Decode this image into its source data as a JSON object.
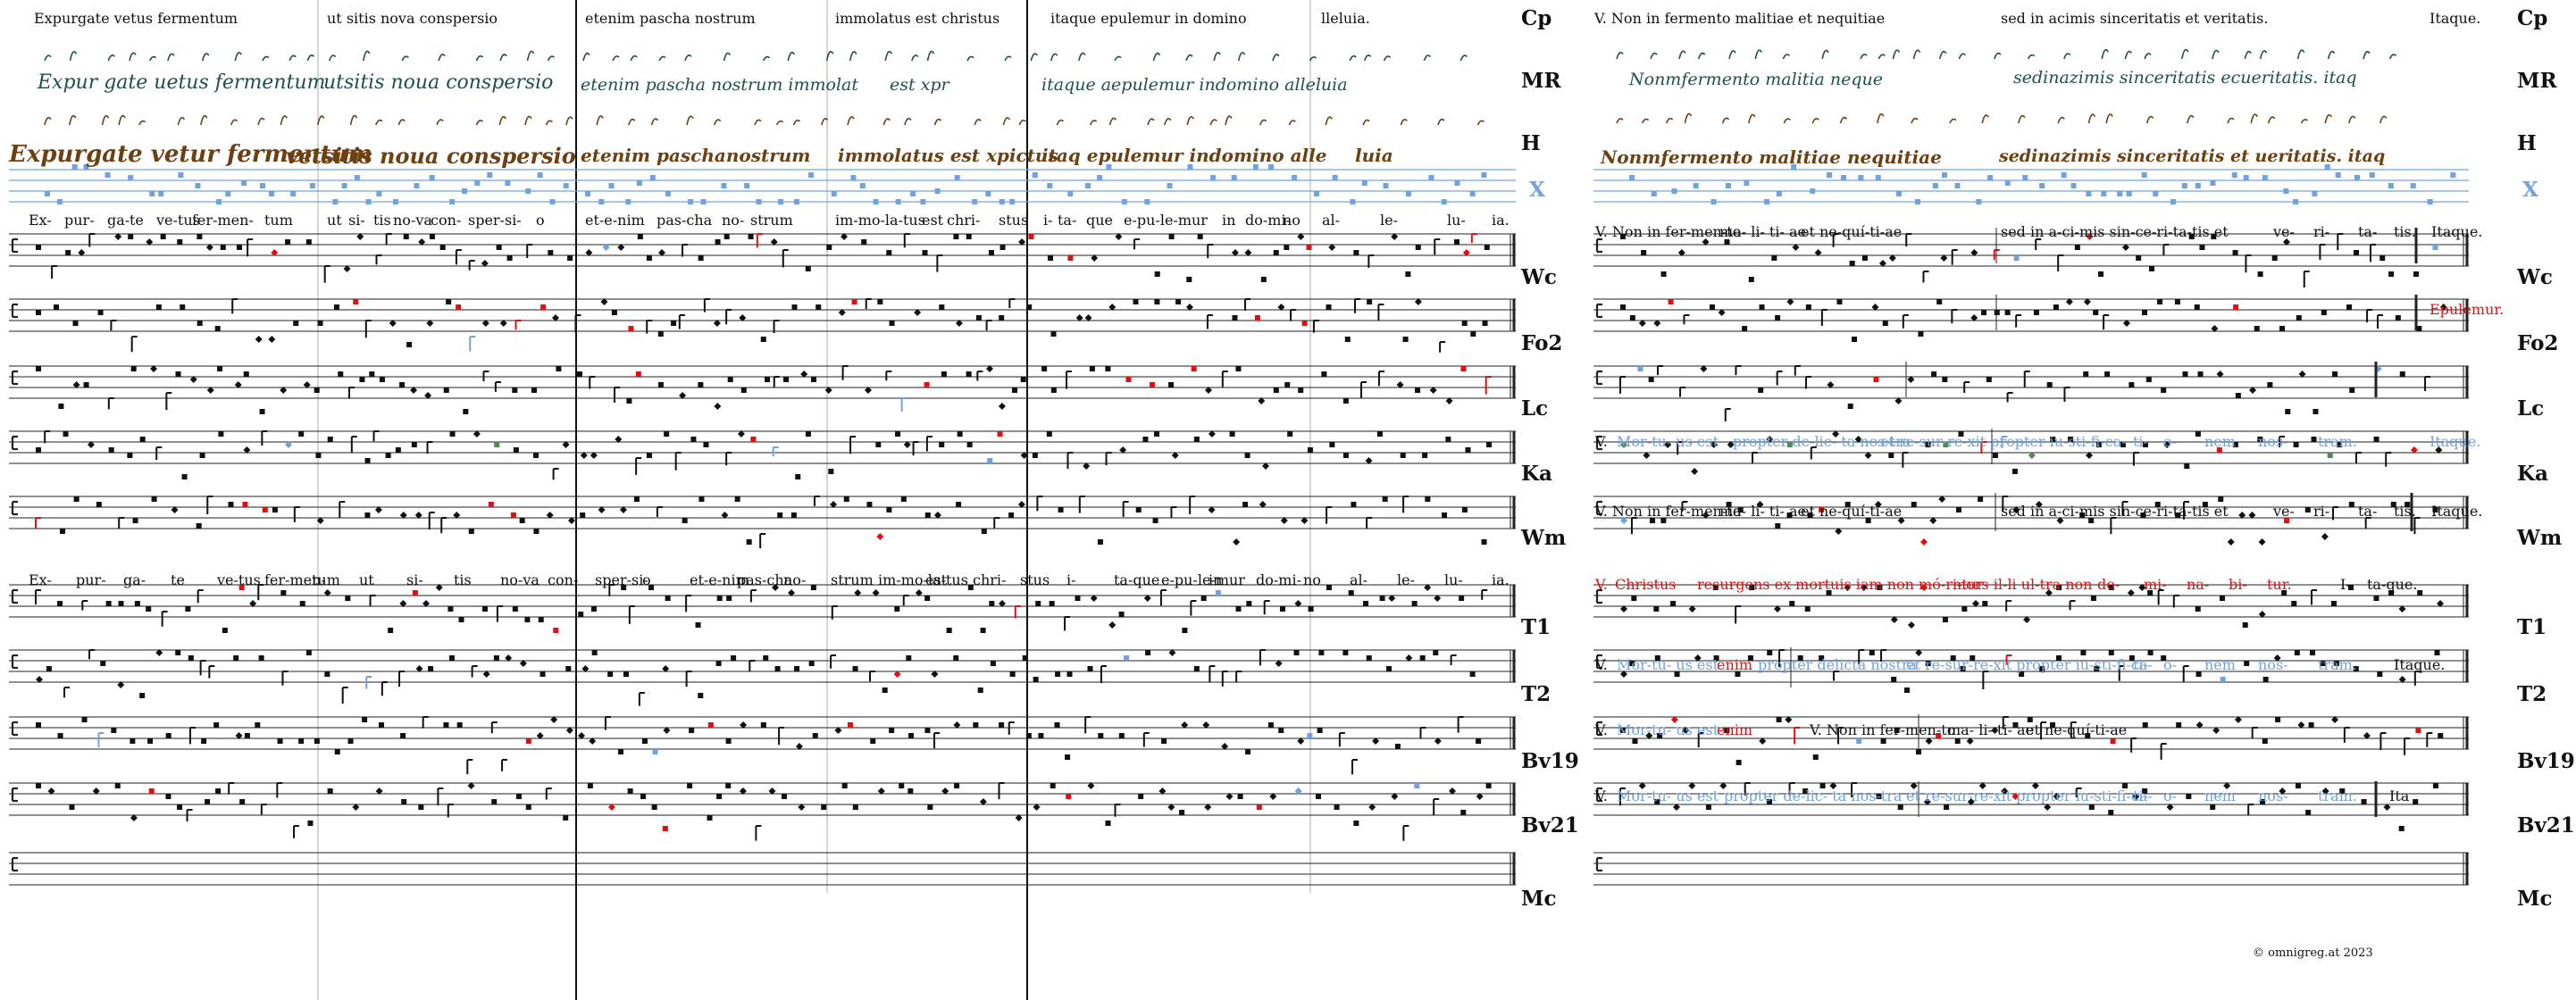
{
  "colors": {
    "ink": "#111111",
    "blue": "#6fa2e0",
    "red": "#e01010",
    "green": "#4f8a55",
    "mr": "#1f4f4c",
    "h": "#6e3f11"
  },
  "left": {
    "cp_cells": [
      "Expurgate vetus fermentum",
      "ut sitis nova conspersio",
      "etenim pascha nostrum",
      "immolatus est christus",
      "itaque epulemur in domino",
      "lleluia."
    ],
    "mr_cells": [
      "Expur gate uetus fermentum",
      "utsitis noua conspersio",
      "etenim pascha nostrum immolat",
      "est xpr",
      "itaque aepulemur indomino alleluia"
    ],
    "h_cells": [
      "Expurgate vetur fermentum",
      "vetsitis noua conspersio",
      "etenim paschanostrum",
      "immolatus est xpictus",
      "itaq epulemur indomino alle",
      "luia"
    ],
    "lyrics1": [
      "Ex-",
      "pur-",
      "ga-",
      "te",
      "ve-tus",
      "fer-men-",
      "tum",
      "ut",
      "si-",
      "tis",
      "no-va",
      "con-",
      "sper-si-",
      "o",
      "et-e-nim",
      "pas-cha",
      "no-",
      "strum",
      "im-mo-la-tus",
      "est",
      "chri-",
      "stus",
      "i-",
      "ta-",
      "que",
      "e-pu-le-mur",
      "in",
      "do-mi-",
      "no",
      "al-",
      "le-",
      "lu-",
      "ia."
    ],
    "lyrics2": [
      "Ex-",
      "pur-",
      "ga-",
      "te",
      "ve-tus",
      "fer-men-",
      "tum",
      "ut",
      "si-",
      "tis",
      "no-va",
      "con-",
      "sper-si-",
      "o",
      "et-e-nim",
      "pas-cha",
      "no-",
      "strum",
      "im-mo-la-tus",
      "est",
      "chri-",
      "stus",
      "i-",
      "ta-que",
      "e-pu-le-mur",
      "in",
      "do-mi-",
      "no",
      "al-",
      "le-",
      "lu-",
      "ia."
    ]
  },
  "right": {
    "cp": [
      "V. Non in fermento malitiae et nequitiae",
      "sed in acimis sinceritatis et veritatis.",
      "Itaque."
    ],
    "mr": [
      "Nonmfermento malitia neque",
      "sedinazimis sinceritatis ecueritatis. itaq"
    ],
    "h": [
      "Nonmfermento malitiae nequitiae",
      "sedinazimis sinceritatis et ueritatis. itaq"
    ],
    "t_wc": [
      "V. Non in fer-men-to",
      "ma- li- ti- ae",
      "et ne-quí-ti-ae",
      "sed in a-ci-mis sin-ce-ri-ta-tis et",
      "ve-",
      "ri-",
      "ta-",
      "tis.",
      "Itaque."
    ],
    "epulemur": "Epulemur.",
    "t_ka": [
      "V.",
      "Mor-tu- us est",
      "propter de-lic- ta nos-tra",
      "et re-sur-re-xit propter iu-sti-fi-ca-",
      "ti-",
      "o-",
      "nem",
      "nos-",
      "tram.",
      "Itaque."
    ],
    "t_wm": [
      "V. Non in fer-men-to",
      "ma- li- ti- ae",
      "et ne-quí-ti-ae",
      "sed in a-ci-mis sin-ce-ri-ta-tis et",
      "ve-",
      "ri-",
      "ta-",
      "tis.",
      "Itaque."
    ],
    "t_t1": [
      "V.",
      "Christus",
      "resurgens ex mortuis iam non mó-ri-tur",
      "mors il-li ul-tra non",
      "do-",
      "mi-",
      "na-",
      "bi-",
      "tur.",
      "I-",
      "ta-que."
    ],
    "t_t2": [
      "V.",
      "Mor-tu- us est",
      "enim",
      "propter delicta nostra",
      "et re-sur-re-xit propter iu-sti-fi-ca-",
      "ti-",
      "o-",
      "nem",
      "nos-",
      "tram.",
      "Itaque."
    ],
    "t_bv19": [
      "V.",
      "Mor-tu- us est",
      "enim",
      "V. Non in fer-men-to",
      "ma- li- ti- ae",
      "et ne-quí-ti-ae"
    ],
    "t_bv21": [
      "V.",
      "Mor-tu- us est",
      "propter de-lic- ta nos-tra",
      "et re-sur-re-xit propter iu-sti-fi-ca-",
      "ti-",
      "o-",
      "nem",
      "nos-",
      "tram.",
      "Ita"
    ]
  },
  "labels": [
    "Cp",
    "MR",
    "H",
    "X",
    "Wc",
    "Fo2",
    "Lc",
    "Ka",
    "Wm",
    "T1",
    "T2",
    "Bv19",
    "Bv21",
    "Mc"
  ],
  "copyright": "© omnigreg.at 2023"
}
